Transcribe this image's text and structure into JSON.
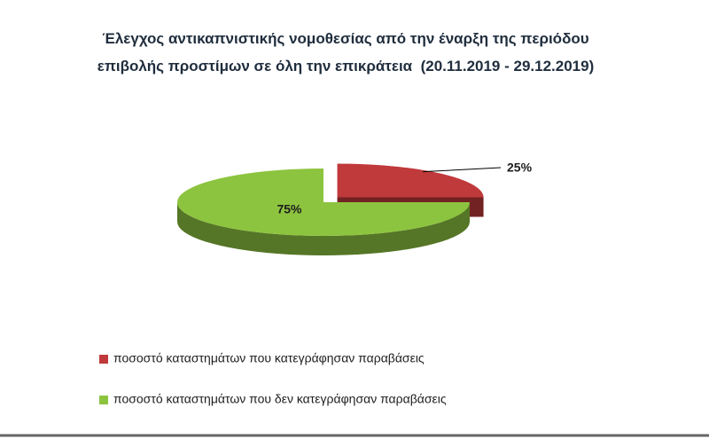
{
  "chart_data": {
    "type": "pie",
    "title": "Έλεγχος αντικαπνιστικής νομοθεσίας από την έναρξη της περιόδου επιβολής προστίμων σε όλη την επικράτεια  (20.11.2019 - 29.12.2019)",
    "categories": [
      "ποσοστό καταστημάτων που κατεγράφησαν παραβάσεις",
      "ποσοστό καταστημάτων που δεν κατεγράφησαν παραβάσεις"
    ],
    "values": [
      25,
      75
    ],
    "value_labels": [
      "25%",
      "75%"
    ],
    "colors": [
      "#c0393b",
      "#8dc43f"
    ],
    "legend": "bottom-left"
  }
}
